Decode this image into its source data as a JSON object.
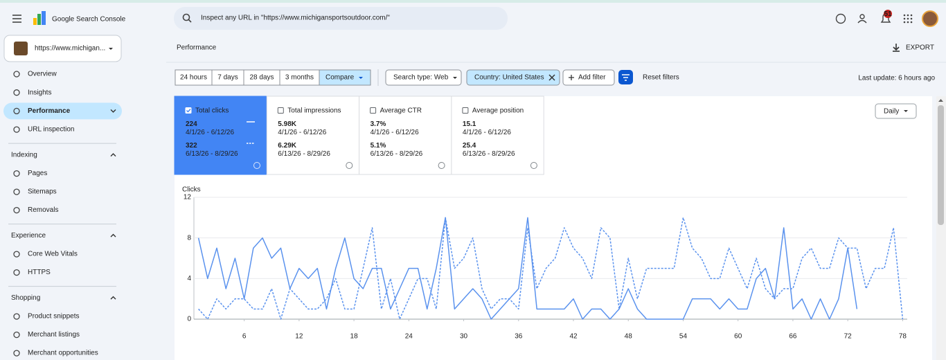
{
  "header": {
    "product": "Google Search Console",
    "search_placeholder": "Inspect any URL in \"https://www.michigansportsoutdoor.com/\"",
    "notification_count": "51"
  },
  "property": "https://www.michigan...",
  "nav": {
    "top": [
      "Overview",
      "Insights",
      "Performance",
      "URL inspection"
    ],
    "sections": [
      {
        "title": "Indexing",
        "items": [
          "Pages",
          "Sitemaps",
          "Removals"
        ]
      },
      {
        "title": "Experience",
        "items": [
          "Core Web Vitals",
          "HTTPS"
        ]
      },
      {
        "title": "Shopping",
        "items": [
          "Product snippets",
          "Merchant listings",
          "Merchant opportunities"
        ]
      }
    ]
  },
  "page": {
    "title": "Performance",
    "export": "EXPORT"
  },
  "filters": {
    "date_ranges": [
      "24 hours",
      "7 days",
      "28 days",
      "3 months"
    ],
    "compare": "Compare",
    "search_type": "Search type: Web",
    "country": "Country: United States",
    "add_filter": "Add filter",
    "reset": "Reset filters",
    "last_update": "Last update: 6 hours ago"
  },
  "metrics": [
    {
      "label": "Total clicks",
      "checked": true,
      "current": "224",
      "current_range": "4/1/26 - 6/12/26",
      "previous": "322",
      "previous_range": "6/13/26 - 8/29/26"
    },
    {
      "label": "Total impressions",
      "checked": false,
      "current": "5.98K",
      "current_range": "4/1/26 - 6/12/26",
      "previous": "6.29K",
      "previous_range": "6/13/26 - 8/29/26"
    },
    {
      "label": "Average CTR",
      "checked": false,
      "current": "3.7%",
      "current_range": "4/1/26 - 6/12/26",
      "previous": "5.1%",
      "previous_range": "6/13/26 - 8/29/26"
    },
    {
      "label": "Average position",
      "checked": false,
      "current": "15.1",
      "current_range": "4/1/26 - 6/12/26",
      "previous": "25.4",
      "previous_range": "6/13/26 - 8/29/26"
    }
  ],
  "granularity": "Daily",
  "chart_data": {
    "type": "line",
    "y_label": "Clicks",
    "x": [
      1,
      2,
      3,
      4,
      5,
      6,
      7,
      8,
      9,
      10,
      11,
      12,
      13,
      14,
      15,
      16,
      17,
      18,
      19,
      20,
      21,
      22,
      23,
      24,
      25,
      26,
      27,
      28,
      29,
      30,
      31,
      32,
      33,
      34,
      35,
      36,
      37,
      38,
      39,
      40,
      41,
      42,
      43,
      44,
      45,
      46,
      47,
      48,
      49,
      50,
      51,
      52,
      53,
      54,
      55,
      56,
      57,
      58,
      59,
      60,
      61,
      62,
      63,
      64,
      65,
      66,
      67,
      68,
      69,
      70,
      71,
      72,
      73,
      74,
      75,
      76,
      77,
      78
    ],
    "series": [
      {
        "color": "#5a92ee",
        "dashed": false,
        "values": [
          8,
          4,
          7,
          3,
          6,
          2,
          7,
          8,
          6,
          7,
          3,
          5,
          4,
          5,
          1,
          5,
          8,
          4,
          3,
          5,
          5,
          1,
          3,
          5,
          5,
          1,
          5,
          10,
          1,
          2,
          3,
          2,
          0,
          1,
          2,
          3,
          10,
          1,
          1,
          1,
          1,
          2,
          0,
          1,
          1,
          0,
          1,
          3,
          1,
          0,
          0,
          0,
          0,
          0,
          2,
          2,
          2,
          1,
          2,
          1,
          1,
          4,
          5,
          2,
          9,
          1,
          2,
          0,
          2,
          0,
          2,
          7,
          1,
          null,
          null,
          null,
          null,
          null
        ]
      },
      {
        "color": "#5a92ee",
        "dashed": true,
        "values": [
          1,
          0,
          2,
          1,
          2,
          2,
          1,
          1,
          3,
          0,
          3,
          2,
          1,
          1,
          2,
          4,
          1,
          1,
          5,
          9,
          1,
          4,
          0,
          2,
          4,
          4,
          1,
          10,
          5,
          6,
          8,
          3,
          1,
          2,
          2,
          1,
          9,
          3,
          5,
          6,
          9,
          7,
          6,
          4,
          9,
          8,
          1,
          6,
          2,
          5,
          5,
          5,
          5,
          10,
          7,
          6,
          4,
          4,
          7,
          5,
          3,
          6,
          3,
          2,
          3,
          3,
          6,
          7,
          5,
          5,
          8,
          7,
          7,
          3,
          5,
          5,
          9,
          0
        ]
      }
    ],
    "xlim": [
      0.5,
      78.5
    ],
    "ylim": [
      0,
      12
    ],
    "xticks": [
      6,
      12,
      18,
      24,
      30,
      36,
      42,
      48,
      54,
      60,
      66,
      72,
      78
    ],
    "yticks": [
      0,
      4,
      8,
      12
    ],
    "grid": true
  }
}
